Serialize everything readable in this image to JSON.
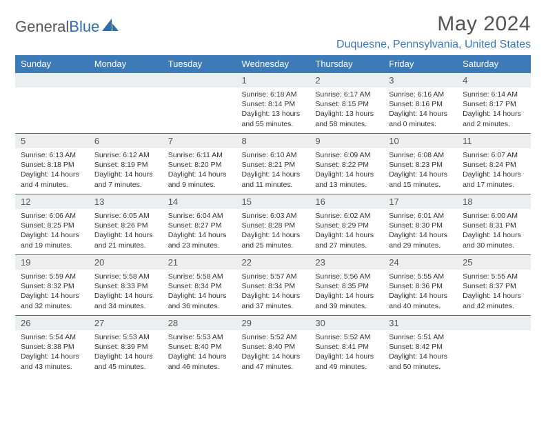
{
  "brand": {
    "name1": "General",
    "name2": "Blue"
  },
  "title": "May 2024",
  "location": "Duquesne, Pennsylvania, United States",
  "colors": {
    "header_bg": "#3d7ab8",
    "header_text": "#ffffff",
    "daynum_bg": "#eceef0",
    "border": "#3d7ab8",
    "title_color": "#555555",
    "location_color": "#3d7ab8"
  },
  "day_headers": [
    "Sunday",
    "Monday",
    "Tuesday",
    "Wednesday",
    "Thursday",
    "Friday",
    "Saturday"
  ],
  "weeks": [
    [
      null,
      null,
      null,
      {
        "n": "1",
        "sunrise": "Sunrise: 6:18 AM",
        "sunset": "Sunset: 8:14 PM",
        "daylight": "Daylight: 13 hours and 55 minutes."
      },
      {
        "n": "2",
        "sunrise": "Sunrise: 6:17 AM",
        "sunset": "Sunset: 8:15 PM",
        "daylight": "Daylight: 13 hours and 58 minutes."
      },
      {
        "n": "3",
        "sunrise": "Sunrise: 6:16 AM",
        "sunset": "Sunset: 8:16 PM",
        "daylight": "Daylight: 14 hours and 0 minutes."
      },
      {
        "n": "4",
        "sunrise": "Sunrise: 6:14 AM",
        "sunset": "Sunset: 8:17 PM",
        "daylight": "Daylight: 14 hours and 2 minutes."
      }
    ],
    [
      {
        "n": "5",
        "sunrise": "Sunrise: 6:13 AM",
        "sunset": "Sunset: 8:18 PM",
        "daylight": "Daylight: 14 hours and 4 minutes."
      },
      {
        "n": "6",
        "sunrise": "Sunrise: 6:12 AM",
        "sunset": "Sunset: 8:19 PM",
        "daylight": "Daylight: 14 hours and 7 minutes."
      },
      {
        "n": "7",
        "sunrise": "Sunrise: 6:11 AM",
        "sunset": "Sunset: 8:20 PM",
        "daylight": "Daylight: 14 hours and 9 minutes."
      },
      {
        "n": "8",
        "sunrise": "Sunrise: 6:10 AM",
        "sunset": "Sunset: 8:21 PM",
        "daylight": "Daylight: 14 hours and 11 minutes."
      },
      {
        "n": "9",
        "sunrise": "Sunrise: 6:09 AM",
        "sunset": "Sunset: 8:22 PM",
        "daylight": "Daylight: 14 hours and 13 minutes."
      },
      {
        "n": "10",
        "sunrise": "Sunrise: 6:08 AM",
        "sunset": "Sunset: 8:23 PM",
        "daylight": "Daylight: 14 hours and 15 minutes."
      },
      {
        "n": "11",
        "sunrise": "Sunrise: 6:07 AM",
        "sunset": "Sunset: 8:24 PM",
        "daylight": "Daylight: 14 hours and 17 minutes."
      }
    ],
    [
      {
        "n": "12",
        "sunrise": "Sunrise: 6:06 AM",
        "sunset": "Sunset: 8:25 PM",
        "daylight": "Daylight: 14 hours and 19 minutes."
      },
      {
        "n": "13",
        "sunrise": "Sunrise: 6:05 AM",
        "sunset": "Sunset: 8:26 PM",
        "daylight": "Daylight: 14 hours and 21 minutes."
      },
      {
        "n": "14",
        "sunrise": "Sunrise: 6:04 AM",
        "sunset": "Sunset: 8:27 PM",
        "daylight": "Daylight: 14 hours and 23 minutes."
      },
      {
        "n": "15",
        "sunrise": "Sunrise: 6:03 AM",
        "sunset": "Sunset: 8:28 PM",
        "daylight": "Daylight: 14 hours and 25 minutes."
      },
      {
        "n": "16",
        "sunrise": "Sunrise: 6:02 AM",
        "sunset": "Sunset: 8:29 PM",
        "daylight": "Daylight: 14 hours and 27 minutes."
      },
      {
        "n": "17",
        "sunrise": "Sunrise: 6:01 AM",
        "sunset": "Sunset: 8:30 PM",
        "daylight": "Daylight: 14 hours and 29 minutes."
      },
      {
        "n": "18",
        "sunrise": "Sunrise: 6:00 AM",
        "sunset": "Sunset: 8:31 PM",
        "daylight": "Daylight: 14 hours and 30 minutes."
      }
    ],
    [
      {
        "n": "19",
        "sunrise": "Sunrise: 5:59 AM",
        "sunset": "Sunset: 8:32 PM",
        "daylight": "Daylight: 14 hours and 32 minutes."
      },
      {
        "n": "20",
        "sunrise": "Sunrise: 5:58 AM",
        "sunset": "Sunset: 8:33 PM",
        "daylight": "Daylight: 14 hours and 34 minutes."
      },
      {
        "n": "21",
        "sunrise": "Sunrise: 5:58 AM",
        "sunset": "Sunset: 8:34 PM",
        "daylight": "Daylight: 14 hours and 36 minutes."
      },
      {
        "n": "22",
        "sunrise": "Sunrise: 5:57 AM",
        "sunset": "Sunset: 8:34 PM",
        "daylight": "Daylight: 14 hours and 37 minutes."
      },
      {
        "n": "23",
        "sunrise": "Sunrise: 5:56 AM",
        "sunset": "Sunset: 8:35 PM",
        "daylight": "Daylight: 14 hours and 39 minutes."
      },
      {
        "n": "24",
        "sunrise": "Sunrise: 5:55 AM",
        "sunset": "Sunset: 8:36 PM",
        "daylight": "Daylight: 14 hours and 40 minutes."
      },
      {
        "n": "25",
        "sunrise": "Sunrise: 5:55 AM",
        "sunset": "Sunset: 8:37 PM",
        "daylight": "Daylight: 14 hours and 42 minutes."
      }
    ],
    [
      {
        "n": "26",
        "sunrise": "Sunrise: 5:54 AM",
        "sunset": "Sunset: 8:38 PM",
        "daylight": "Daylight: 14 hours and 43 minutes."
      },
      {
        "n": "27",
        "sunrise": "Sunrise: 5:53 AM",
        "sunset": "Sunset: 8:39 PM",
        "daylight": "Daylight: 14 hours and 45 minutes."
      },
      {
        "n": "28",
        "sunrise": "Sunrise: 5:53 AM",
        "sunset": "Sunset: 8:40 PM",
        "daylight": "Daylight: 14 hours and 46 minutes."
      },
      {
        "n": "29",
        "sunrise": "Sunrise: 5:52 AM",
        "sunset": "Sunset: 8:40 PM",
        "daylight": "Daylight: 14 hours and 47 minutes."
      },
      {
        "n": "30",
        "sunrise": "Sunrise: 5:52 AM",
        "sunset": "Sunset: 8:41 PM",
        "daylight": "Daylight: 14 hours and 49 minutes."
      },
      {
        "n": "31",
        "sunrise": "Sunrise: 5:51 AM",
        "sunset": "Sunset: 8:42 PM",
        "daylight": "Daylight: 14 hours and 50 minutes."
      },
      null
    ]
  ]
}
